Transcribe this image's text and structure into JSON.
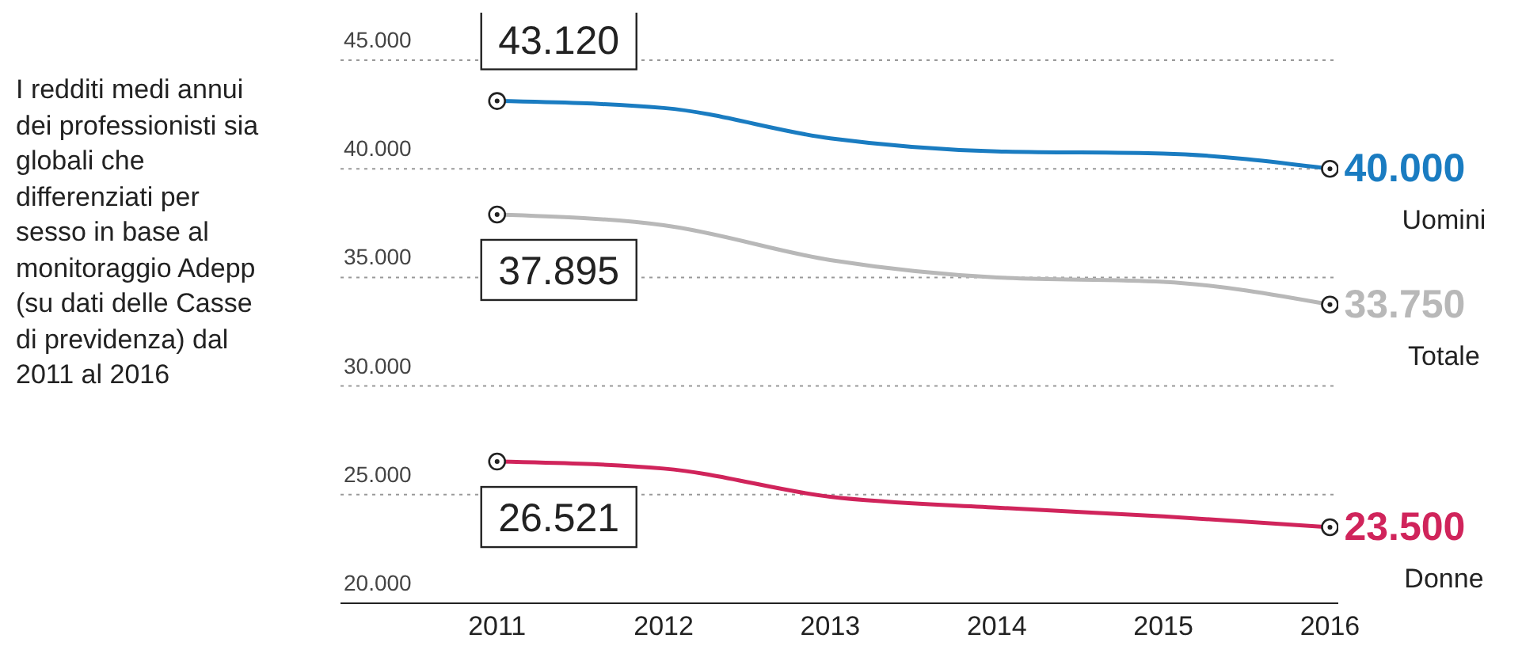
{
  "chart_data": {
    "type": "line",
    "annotations": [
      "I redditi medi annui dei professionisti sia globali che differenziati per sesso in base al monitoraggio Adepp (su dati delle Casse di previdenza) dal 2011 al 2016"
    ],
    "categories": [
      "2011",
      "2012",
      "2013",
      "2014",
      "2015",
      "2016"
    ],
    "series": [
      {
        "name": "Uomini",
        "color": "#1a7cc1",
        "values": [
          43120,
          42800,
          41400,
          40800,
          40700,
          40000
        ],
        "value_labels": [
          "43.120",
          null,
          null,
          null,
          null,
          "40.000"
        ]
      },
      {
        "name": "Totale",
        "color": "#b8b8b8",
        "values": [
          37895,
          37400,
          35800,
          35000,
          34800,
          33750
        ],
        "value_labels": [
          "37.895",
          null,
          null,
          null,
          null,
          "33.750"
        ]
      },
      {
        "name": "Donne",
        "color": "#d0245b",
        "values": [
          26521,
          26200,
          24900,
          24400,
          24000,
          23500
        ],
        "value_labels": [
          "26.521",
          null,
          null,
          null,
          null,
          "23.500"
        ]
      }
    ],
    "ylim": [
      20000,
      45000
    ],
    "yticks": [
      {
        "value": 20000,
        "label": "20.000"
      },
      {
        "value": 25000,
        "label": "25.000"
      },
      {
        "value": 30000,
        "label": "30.000"
      },
      {
        "value": 35000,
        "label": "35.000"
      },
      {
        "value": 40000,
        "label": "40.000"
      },
      {
        "value": 45000,
        "label": "45.000"
      }
    ],
    "grid": "y",
    "legend": false,
    "line_style": "solid"
  }
}
